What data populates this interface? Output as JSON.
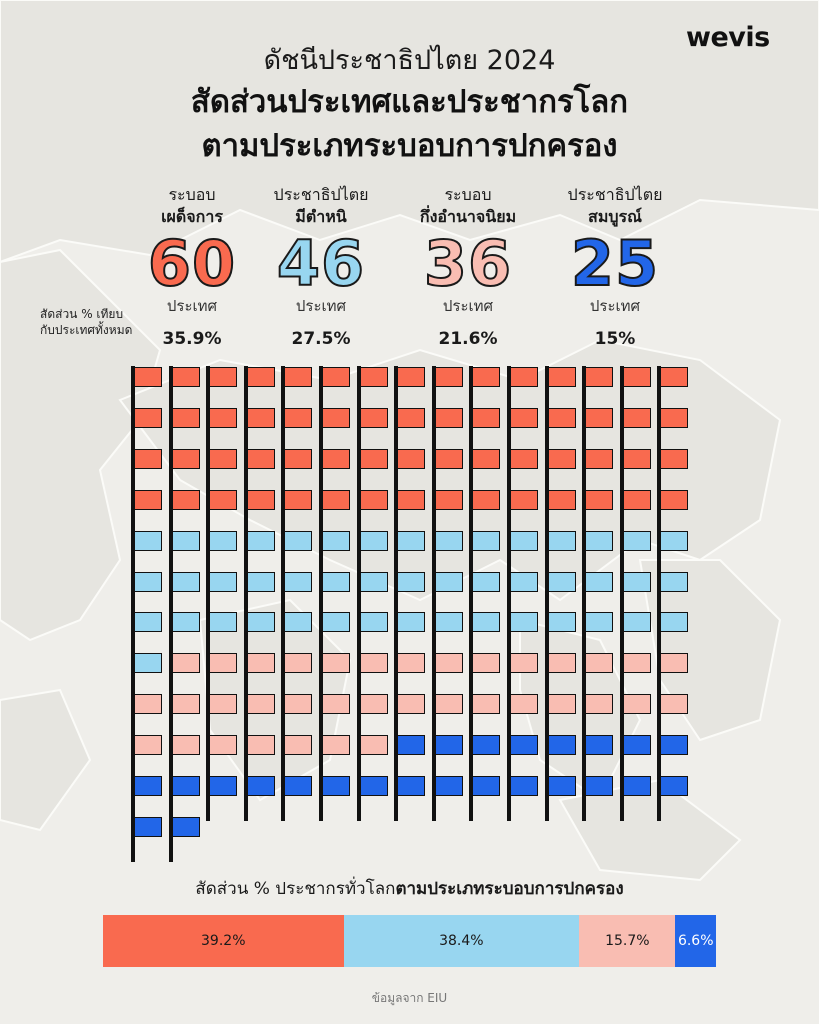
{
  "logo": "wevis",
  "title_top": "ดัชนีประชาธิปไตย 2024",
  "title_main_line1": "สัดส่วนประเทศและประชากรโลก",
  "title_main_line2": "ตามประเภทระบอบการปกครอง",
  "pct_row_label_line1": "สัดส่วน % เทียบ",
  "pct_row_label_line2": "กับประเทศทั้งหมด",
  "categories": [
    {
      "line1": "ระบอบ",
      "line2": "เผด็จการ",
      "count": "60",
      "unit": "ประเทศ",
      "pct": "35.9%",
      "color": "#f96a4f"
    },
    {
      "line1": "ประชาธิปไตย",
      "line2": "มีตำหนิ",
      "count": "46",
      "unit": "ประเทศ",
      "pct": "27.5%",
      "color": "#98d6f0"
    },
    {
      "line1": "ระบอบ",
      "line2": "กึ่งอำนาจนิยม",
      "count": "36",
      "unit": "ประเทศ",
      "pct": "21.6%",
      "color": "#f9bdb2"
    },
    {
      "line1": "ประชาธิปไตย",
      "line2": "สมบูรณ์",
      "count": "25",
      "unit": "ประเทศ",
      "pct": "15%",
      "color": "#2266e8"
    }
  ],
  "chart_data": [
    {
      "type": "waffle",
      "unit": "ประเทศ",
      "categories": [
        "ระบอบเผด็จการ",
        "ประชาธิปไตยมีตำหนิ",
        "ระบอบกึ่งอำนาจนิยม",
        "ประชาธิปไตยสมบูรณ์"
      ],
      "values": [
        60,
        46,
        36,
        25
      ],
      "percent": [
        35.9,
        27.5,
        21.6,
        15
      ],
      "colors": [
        "#f96a4f",
        "#98d6f0",
        "#f9bdb2",
        "#2266e8"
      ]
    },
    {
      "type": "bar",
      "stacked": true,
      "title_regular": "สัดส่วน % ประชากรทั่วโลก",
      "title_bold": "ตามประเภทระบอบการปกครอง",
      "categories": [
        "ระบอบเผด็จการ",
        "ประชาธิปไตยมีตำหนิ",
        "ระบอบกึ่งอำนาจนิยม",
        "ประชาธิปไตยสมบูรณ์"
      ],
      "values": [
        39.2,
        38.4,
        15.7,
        6.6
      ],
      "labels": [
        "39.2%",
        "38.4%",
        "15.7%",
        "6.6%"
      ],
      "colors": [
        "#f96a4f",
        "#98d6f0",
        "#f9bdb2",
        "#2266e8"
      ]
    }
  ],
  "source": "ข้อมูลจาก EIU"
}
